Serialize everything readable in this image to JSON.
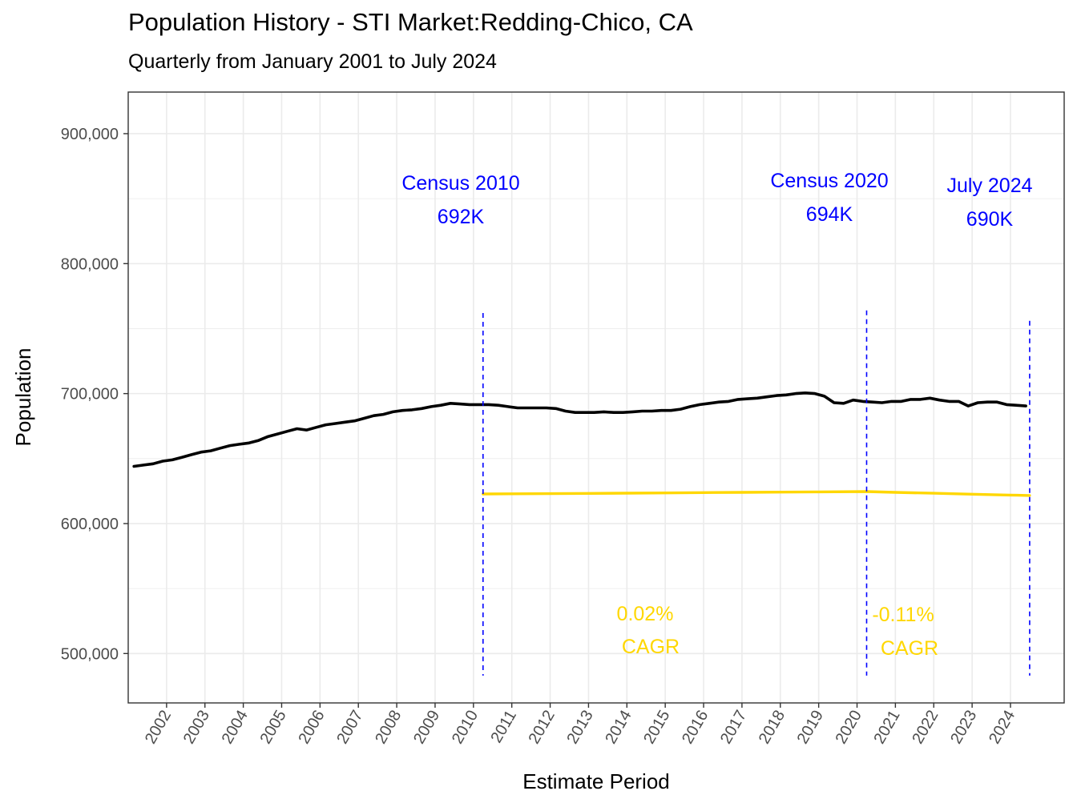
{
  "chart_data": {
    "type": "line",
    "title": "Population History - STI Market:Redding-Chico, CA",
    "subtitle": "Quarterly from January 2001 to July 2024",
    "xlabel": "Estimate Period",
    "ylabel": "Population",
    "ylim": [
      462000,
      932000
    ],
    "xlim": [
      2001.0,
      2025.4
    ],
    "yticks": [
      500000,
      600000,
      700000,
      800000,
      900000
    ],
    "ytick_labels": [
      "500,000",
      "600,000",
      "700,000",
      "800,000",
      "900,000"
    ],
    "xticks": [
      2002,
      2003,
      2004,
      2005,
      2006,
      2007,
      2008,
      2009,
      2010,
      2011,
      2012,
      2013,
      2014,
      2015,
      2016,
      2017,
      2018,
      2019,
      2020,
      2021,
      2022,
      2023,
      2024
    ],
    "xtick_labels": [
      "2002",
      "2003",
      "2004",
      "2005",
      "2006",
      "2007",
      "2008",
      "2009",
      "2010",
      "2011",
      "2012",
      "2013",
      "2014",
      "2015",
      "2016",
      "2017",
      "2018",
      "2019",
      "2020",
      "2021",
      "2022",
      "2023",
      "2024"
    ],
    "grid": true,
    "colors": {
      "population": "#000000",
      "cagr": "#FFD700",
      "census": "#0000FF",
      "grid": "#EBEBEB",
      "panel_border": "#333333"
    },
    "series": [
      {
        "x": [
          2001.15,
          2001.4,
          2001.65,
          2001.9,
          2002.15,
          2002.4,
          2002.65,
          2002.9,
          2003.15,
          2003.4,
          2003.65,
          2003.9,
          2004.15,
          2004.4,
          2004.65,
          2004.9,
          2005.15,
          2005.4,
          2005.65,
          2005.9,
          2006.15,
          2006.4,
          2006.65,
          2006.9,
          2007.15,
          2007.4,
          2007.65,
          2007.9,
          2008.15,
          2008.4,
          2008.65,
          2008.9,
          2009.15,
          2009.4,
          2009.65,
          2009.9,
          2010.15,
          2010.4,
          2010.65,
          2010.9,
          2011.15,
          2011.4,
          2011.65,
          2011.9,
          2012.15,
          2012.4,
          2012.65,
          2012.9,
          2013.15,
          2013.4,
          2013.65,
          2013.9,
          2014.15,
          2014.4,
          2014.65,
          2014.9,
          2015.15,
          2015.4,
          2015.65,
          2015.9,
          2016.15,
          2016.4,
          2016.65,
          2016.9,
          2017.15,
          2017.4,
          2017.65,
          2017.9,
          2018.15,
          2018.4,
          2018.65,
          2018.9,
          2019.15,
          2019.4,
          2019.65,
          2019.9,
          2020.15,
          2020.4,
          2020.65,
          2020.9,
          2021.15,
          2021.4,
          2021.65,
          2021.9,
          2022.15,
          2022.4,
          2022.65,
          2022.9,
          2023.15,
          2023.4,
          2023.65,
          2023.9,
          2024.15,
          2024.4
        ],
        "values": [
          644000,
          645000,
          646000,
          648000,
          649000,
          651000,
          653000,
          655000,
          656000,
          658000,
          660000,
          661000,
          662000,
          664000,
          667000,
          669000,
          671000,
          673000,
          672000,
          674000,
          676000,
          677000,
          678000,
          679000,
          681000,
          683000,
          684000,
          686000,
          687000,
          687500,
          688500,
          690000,
          691000,
          692500,
          692000,
          691500,
          691500,
          691500,
          691000,
          690000,
          689000,
          689000,
          689000,
          689000,
          688500,
          686500,
          685500,
          685500,
          685500,
          686000,
          685500,
          685500,
          686000,
          686500,
          686500,
          687000,
          687000,
          688000,
          690000,
          691500,
          692500,
          693500,
          694000,
          695500,
          696000,
          696500,
          697500,
          698500,
          699000,
          700000,
          700500,
          700000,
          698000,
          693000,
          692500,
          695000,
          694000,
          693500,
          693000,
          694000,
          694000,
          695500,
          695500,
          696500,
          695000,
          694000,
          694000,
          690500,
          693000,
          693500,
          693500,
          691500,
          691000,
          690500
        ]
      },
      {
        "x": [
          2010.25,
          2011.0,
          2012.0,
          2013.0,
          2014.0,
          2015.0,
          2016.0,
          2017.0,
          2018.0,
          2019.0,
          2020.25,
          2021.0,
          2022.0,
          2023.0,
          2024.0,
          2024.5
        ],
        "values": [
          622800,
          622900,
          623000,
          623200,
          623400,
          623600,
          623800,
          624000,
          624200,
          624400,
          624600,
          624000,
          623300,
          622600,
          621900,
          621600
        ]
      }
    ],
    "census_lines": [
      {
        "x": 2010.25,
        "label_line1": "Census 2010",
        "label_line2": "692K",
        "y_top": 762000
      },
      {
        "x": 2020.25,
        "label_line1": "Census 2020",
        "label_line2": "694K",
        "y_top": 764000
      },
      {
        "x": 2024.5,
        "label_line1": "July 2024",
        "label_line2": "690K",
        "y_top": 756000
      }
    ],
    "census_line_bottom": 483000,
    "cagr_labels": [
      {
        "line1": "0.02%",
        "line2": "CAGR"
      },
      {
        "line1": "-0.11%",
        "line2": "CAGR"
      }
    ]
  }
}
